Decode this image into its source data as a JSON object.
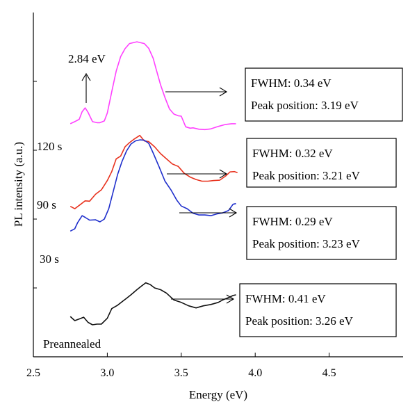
{
  "chart_data": {
    "type": "line",
    "xlabel": "Energy (eV)",
    "ylabel": "PL intensity (a.u.)",
    "xlim": [
      2.5,
      5.0
    ],
    "ylim": [
      0,
      1
    ],
    "xticks": [
      "2.5",
      "3.0",
      "3.5",
      "4.0",
      "4.5"
    ],
    "grid": false,
    "annotation": "2.84 eV",
    "series": [
      {
        "name": "120 s",
        "color": "#ff40ff",
        "fwhm": "FWHM: 0.34 eV",
        "peak": "Peak position: 3.19 eV",
        "x": [
          2.75,
          2.78,
          2.81,
          2.83,
          2.85,
          2.87,
          2.9,
          2.93,
          2.95,
          2.98,
          3.0,
          3.03,
          3.06,
          3.09,
          3.12,
          3.15,
          3.2,
          3.25,
          3.28,
          3.31,
          3.33,
          3.36,
          3.39,
          3.42,
          3.45,
          3.48,
          3.5,
          3.53,
          3.56,
          3.58,
          3.62,
          3.66,
          3.7,
          3.75,
          3.8,
          3.84,
          3.87
        ],
        "y": [
          0.677,
          0.683,
          0.69,
          0.712,
          0.723,
          0.71,
          0.683,
          0.68,
          0.68,
          0.685,
          0.708,
          0.77,
          0.83,
          0.872,
          0.895,
          0.91,
          0.915,
          0.91,
          0.896,
          0.867,
          0.836,
          0.79,
          0.753,
          0.72,
          0.705,
          0.7,
          0.699,
          0.668,
          0.664,
          0.665,
          0.661,
          0.66,
          0.662,
          0.669,
          0.675,
          0.677,
          0.677
        ]
      },
      {
        "name": "90 s",
        "color": "#e8321e",
        "fwhm": "FWHM: 0.32 eV",
        "peak": "Peak position: 3.21 eV",
        "x": [
          2.75,
          2.78,
          2.82,
          2.85,
          2.88,
          2.92,
          2.96,
          3.0,
          3.03,
          3.06,
          3.09,
          3.12,
          3.15,
          3.18,
          3.22,
          3.25,
          3.28,
          3.32,
          3.36,
          3.4,
          3.44,
          3.48,
          3.52,
          3.56,
          3.6,
          3.64,
          3.68,
          3.72,
          3.76,
          3.8,
          3.83,
          3.86,
          3.88
        ],
        "y": [
          0.437,
          0.43,
          0.443,
          0.453,
          0.452,
          0.472,
          0.485,
          0.512,
          0.538,
          0.575,
          0.583,
          0.61,
          0.622,
          0.632,
          0.643,
          0.627,
          0.625,
          0.61,
          0.59,
          0.575,
          0.56,
          0.553,
          0.533,
          0.522,
          0.515,
          0.51,
          0.51,
          0.512,
          0.513,
          0.525,
          0.537,
          0.538,
          0.535
        ]
      },
      {
        "name": "30 s",
        "color": "#1f2fcc",
        "fwhm": "FWHM: 0.29 eV",
        "peak": "Peak position: 3.23 eV",
        "x": [
          2.75,
          2.78,
          2.8,
          2.83,
          2.85,
          2.88,
          2.92,
          2.95,
          2.98,
          3.01,
          3.04,
          3.07,
          3.1,
          3.13,
          3.16,
          3.19,
          3.22,
          3.25,
          3.28,
          3.31,
          3.35,
          3.39,
          3.43,
          3.47,
          3.5,
          3.54,
          3.58,
          3.62,
          3.66,
          3.7,
          3.74,
          3.78,
          3.82,
          3.85,
          3.87
        ],
        "y": [
          0.365,
          0.372,
          0.39,
          0.41,
          0.405,
          0.397,
          0.398,
          0.392,
          0.4,
          0.43,
          0.48,
          0.53,
          0.568,
          0.598,
          0.618,
          0.627,
          0.63,
          0.629,
          0.62,
          0.592,
          0.552,
          0.51,
          0.485,
          0.455,
          0.438,
          0.43,
          0.417,
          0.412,
          0.412,
          0.41,
          0.415,
          0.418,
          0.425,
          0.443,
          0.445
        ]
      },
      {
        "name": "Preannealed",
        "color": "#111111",
        "fwhm": "FWHM: 0.41 eV",
        "peak": "Peak position: 3.26 eV",
        "x": [
          2.75,
          2.78,
          2.81,
          2.84,
          2.87,
          2.9,
          2.93,
          2.96,
          3.0,
          3.03,
          3.07,
          3.1,
          3.13,
          3.16,
          3.2,
          3.23,
          3.26,
          3.29,
          3.32,
          3.36,
          3.4,
          3.45,
          3.5,
          3.55,
          3.6,
          3.65,
          3.7,
          3.75,
          3.78,
          3.82,
          3.85,
          3.87
        ],
        "y": [
          0.117,
          0.105,
          0.11,
          0.115,
          0.1,
          0.093,
          0.095,
          0.095,
          0.112,
          0.14,
          0.15,
          0.16,
          0.17,
          0.18,
          0.195,
          0.205,
          0.215,
          0.21,
          0.2,
          0.195,
          0.185,
          0.165,
          0.158,
          0.148,
          0.142,
          0.148,
          0.152,
          0.158,
          0.165,
          0.172,
          0.178,
          0.18
        ]
      }
    ]
  }
}
